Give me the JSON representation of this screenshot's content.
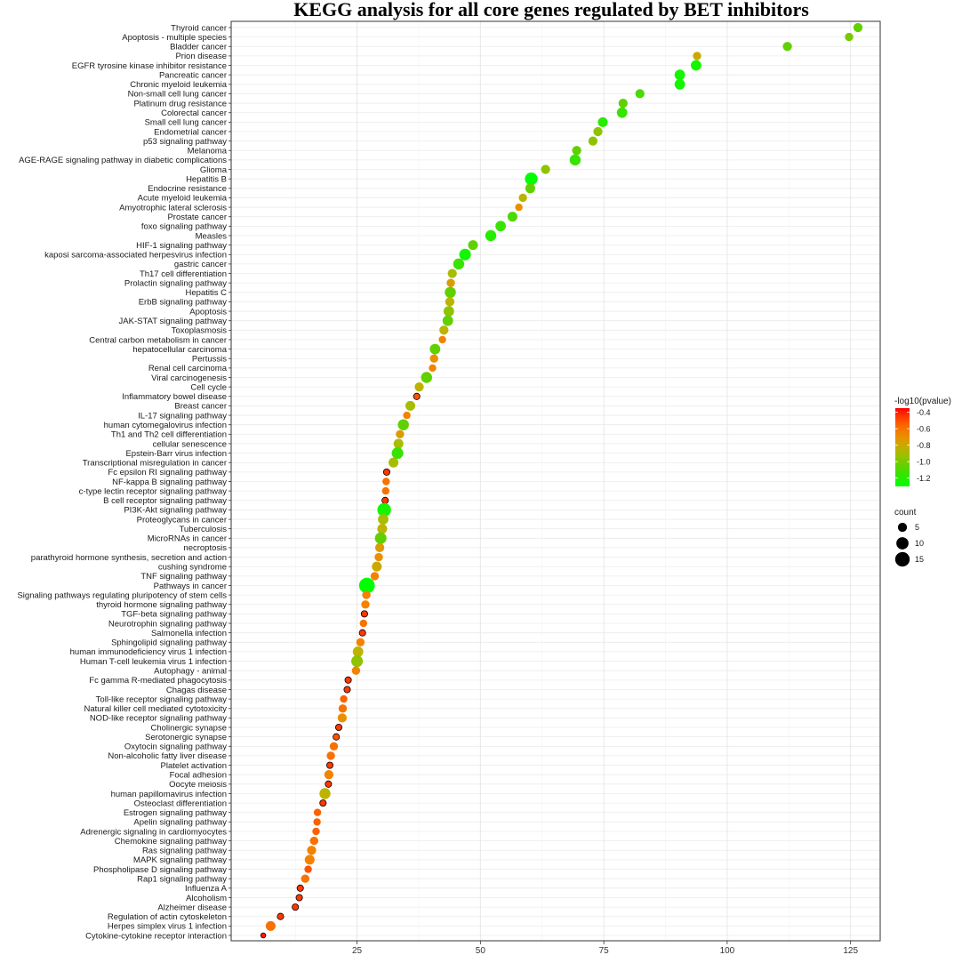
{
  "chart_data": {
    "type": "scatter",
    "title": "KEGG analysis for all core genes regulated by BET inhibitors",
    "xlabel": "",
    "ylabel": "",
    "xlim": [
      -0.5,
      131
    ],
    "xticks": [
      25,
      50,
      75,
      100,
      125
    ],
    "grid": true,
    "color_legend": {
      "title": "-log10(pvalue)",
      "range": [
        -1.3,
        -0.35
      ],
      "ticks": [
        -0.4,
        -0.6,
        -0.8,
        -1.0,
        -1.2
      ],
      "tick_labels": [
        "-0.4",
        "-0.6",
        "-0.8",
        "-1.0",
        "-1.2"
      ],
      "high_color": "#ff0000",
      "low_color": "#00ff00"
    },
    "size_legend": {
      "title": "count",
      "values": [
        5,
        10,
        15
      ],
      "labels": [
        "5",
        "10",
        "15"
      ]
    },
    "points": [
      {
        "term": "Thyroid cancer",
        "x": 126.5,
        "count": 5,
        "pvalue_log": -1.05
      },
      {
        "term": "Apoptosis - multiple species",
        "x": 124.7,
        "count": 4,
        "pvalue_log": -1.0
      },
      {
        "term": "Bladder cancer",
        "x": 112.2,
        "count": 5,
        "pvalue_log": -1.05
      },
      {
        "term": "Prion disease",
        "x": 93.9,
        "count": 4,
        "pvalue_log": -0.8
      },
      {
        "term": "EGFR tyrosine kinase inhibitor resistance",
        "x": 93.7,
        "count": 7,
        "pvalue_log": -1.25
      },
      {
        "term": "Pancreatic cancer",
        "x": 90.4,
        "count": 7,
        "pvalue_log": -1.25
      },
      {
        "term": "Chronic myeloid leukemia",
        "x": 90.4,
        "count": 7,
        "pvalue_log": -1.25
      },
      {
        "term": "Non-small cell lung cancer",
        "x": 82.3,
        "count": 5,
        "pvalue_log": -1.1
      },
      {
        "term": "Platinum drug resistance",
        "x": 78.9,
        "count": 5,
        "pvalue_log": -1.05
      },
      {
        "term": "Colorectal cancer",
        "x": 78.7,
        "count": 7,
        "pvalue_log": -1.15
      },
      {
        "term": "Small cell lung cancer",
        "x": 74.8,
        "count": 6,
        "pvalue_log": -1.2
      },
      {
        "term": "Endometrial cancer",
        "x": 73.8,
        "count": 5,
        "pvalue_log": -0.95
      },
      {
        "term": "p53 signaling pathway",
        "x": 72.8,
        "count": 5,
        "pvalue_log": -0.95
      },
      {
        "term": "Melanoma",
        "x": 69.5,
        "count": 5,
        "pvalue_log": -1.05
      },
      {
        "term": "AGE-RAGE signaling pathway in diabetic complications",
        "x": 69.2,
        "count": 8,
        "pvalue_log": -1.15
      },
      {
        "term": "Glioma",
        "x": 63.2,
        "count": 5,
        "pvalue_log": -0.95
      },
      {
        "term": "Hepatitis B",
        "x": 60.3,
        "count": 11,
        "pvalue_log": -1.3
      },
      {
        "term": "Endocrine resistance",
        "x": 60.1,
        "count": 6,
        "pvalue_log": -1.05
      },
      {
        "term": "Acute myeloid leukemia",
        "x": 58.6,
        "count": 4,
        "pvalue_log": -0.85
      },
      {
        "term": "Amyotrophic lateral sclerosis",
        "x": 57.8,
        "count": 3,
        "pvalue_log": -0.7
      },
      {
        "term": "Prostate cancer",
        "x": 56.5,
        "count": 6,
        "pvalue_log": -1.1
      },
      {
        "term": "foxo signaling pathway",
        "x": 54.1,
        "count": 7,
        "pvalue_log": -1.15
      },
      {
        "term": "Measles",
        "x": 52.1,
        "count": 8,
        "pvalue_log": -1.2
      },
      {
        "term": "HIF-1 signaling pathway",
        "x": 48.5,
        "count": 6,
        "pvalue_log": -1.05
      },
      {
        "term": "kaposi sarcoma-associated herpesvirus infection",
        "x": 46.9,
        "count": 9,
        "pvalue_log": -1.25
      },
      {
        "term": "gastric cancer",
        "x": 45.6,
        "count": 8,
        "pvalue_log": -1.15
      },
      {
        "term": "Th17 cell differentiation",
        "x": 44.3,
        "count": 5,
        "pvalue_log": -0.9
      },
      {
        "term": "Prolactin signaling pathway",
        "x": 44.0,
        "count": 4,
        "pvalue_log": -0.75
      },
      {
        "term": "Hepatitis C",
        "x": 43.9,
        "count": 8,
        "pvalue_log": -1.05
      },
      {
        "term": "ErbB signaling pathway",
        "x": 43.8,
        "count": 5,
        "pvalue_log": -0.85
      },
      {
        "term": "Apoptosis",
        "x": 43.6,
        "count": 7,
        "pvalue_log": -0.95
      },
      {
        "term": "JAK-STAT signaling pathway",
        "x": 43.4,
        "count": 7,
        "pvalue_log": -1.05
      },
      {
        "term": "Toxoplasmosis",
        "x": 42.6,
        "count": 5,
        "pvalue_log": -0.85
      },
      {
        "term": "Central carbon metabolism in cancer",
        "x": 42.3,
        "count": 3,
        "pvalue_log": -0.65
      },
      {
        "term": "hepatocellular carcinoma",
        "x": 40.8,
        "count": 7,
        "pvalue_log": -1.05
      },
      {
        "term": "Pertussis",
        "x": 40.6,
        "count": 4,
        "pvalue_log": -0.7
      },
      {
        "term": "Renal cell carcinoma",
        "x": 40.3,
        "count": 3,
        "pvalue_log": -0.65
      },
      {
        "term": "Viral carcinogenesis",
        "x": 39.1,
        "count": 8,
        "pvalue_log": -1.05
      },
      {
        "term": "Cell cycle",
        "x": 37.6,
        "count": 5,
        "pvalue_log": -0.85
      },
      {
        "term": "Inflammatory bowel disease",
        "x": 37.1,
        "count": 2,
        "pvalue_log": -0.5
      },
      {
        "term": "Breast cancer",
        "x": 35.8,
        "count": 6,
        "pvalue_log": -0.9
      },
      {
        "term": "IL-17 signaling pathway",
        "x": 35.1,
        "count": 3,
        "pvalue_log": -0.65
      },
      {
        "term": "human cytomegalovirus infection",
        "x": 34.4,
        "count": 8,
        "pvalue_log": -1.05
      },
      {
        "term": "Th1 and Th2 cell differentiation",
        "x": 33.7,
        "count": 4,
        "pvalue_log": -0.75
      },
      {
        "term": "cellular senescence",
        "x": 33.4,
        "count": 6,
        "pvalue_log": -0.9
      },
      {
        "term": "Epstein-Barr virus infection",
        "x": 33.2,
        "count": 9,
        "pvalue_log": -1.15
      },
      {
        "term": "Transcriptional misregulation in cancer",
        "x": 32.4,
        "count": 6,
        "pvalue_log": -0.9
      },
      {
        "term": "Fc epsilon RI signaling pathway",
        "x": 31.0,
        "count": 2,
        "pvalue_log": -0.45
      },
      {
        "term": "NF-kappa B signaling pathway",
        "x": 30.9,
        "count": 3,
        "pvalue_log": -0.6
      },
      {
        "term": "c-type lectin receptor signaling pathway",
        "x": 30.8,
        "count": 3,
        "pvalue_log": -0.6
      },
      {
        "term": "B cell receptor signaling pathway",
        "x": 30.7,
        "count": 2,
        "pvalue_log": -0.45
      },
      {
        "term": "PI3K-Akt signaling pathway",
        "x": 30.5,
        "count": 13,
        "pvalue_log": -1.25
      },
      {
        "term": "Proteoglycans in cancer",
        "x": 30.3,
        "count": 7,
        "pvalue_log": -0.9
      },
      {
        "term": "Tuberculosis",
        "x": 30.1,
        "count": 6,
        "pvalue_log": -0.85
      },
      {
        "term": "MicroRNAs in cancer",
        "x": 29.8,
        "count": 9,
        "pvalue_log": -1.05
      },
      {
        "term": "necroptosis",
        "x": 29.6,
        "count": 5,
        "pvalue_log": -0.75
      },
      {
        "term": "parathyroid hormone synthesis, secretion and action",
        "x": 29.4,
        "count": 4,
        "pvalue_log": -0.7
      },
      {
        "term": "cushing syndrome",
        "x": 29.0,
        "count": 6,
        "pvalue_log": -0.8
      },
      {
        "term": "TNF signaling pathway",
        "x": 28.6,
        "count": 4,
        "pvalue_log": -0.65
      },
      {
        "term": "Pathways in cancer",
        "x": 27.0,
        "count": 18,
        "pvalue_log": -1.3
      },
      {
        "term": "Signaling pathways regulating pluripotency of stem cells",
        "x": 26.9,
        "count": 4,
        "pvalue_log": -0.65
      },
      {
        "term": "thyroid hormone signaling pathway",
        "x": 26.7,
        "count": 4,
        "pvalue_log": -0.65
      },
      {
        "term": "TGF-beta signaling pathway",
        "x": 26.5,
        "count": 2,
        "pvalue_log": -0.45
      },
      {
        "term": "Neurotrophin signaling pathway",
        "x": 26.3,
        "count": 3,
        "pvalue_log": -0.6
      },
      {
        "term": "Salmonella infection",
        "x": 26.1,
        "count": 2,
        "pvalue_log": -0.45
      },
      {
        "term": "Sphingolipid signaling pathway",
        "x": 25.7,
        "count": 4,
        "pvalue_log": -0.65
      },
      {
        "term": "human immunodeficiency virus 1 infection",
        "x": 25.2,
        "count": 7,
        "pvalue_log": -0.85
      },
      {
        "term": "Human T-cell leukemia virus 1 infection",
        "x": 25.0,
        "count": 9,
        "pvalue_log": -0.95
      },
      {
        "term": "Autophagy - animal",
        "x": 24.8,
        "count": 4,
        "pvalue_log": -0.65
      },
      {
        "term": "Fc gamma R-mediated phagocytosis",
        "x": 23.2,
        "count": 2,
        "pvalue_log": -0.45
      },
      {
        "term": "Chagas disease",
        "x": 23.0,
        "count": 2,
        "pvalue_log": -0.45
      },
      {
        "term": "Toll-like receptor signaling pathway",
        "x": 22.3,
        "count": 3,
        "pvalue_log": -0.55
      },
      {
        "term": "Natural killer cell mediated cytotoxicity",
        "x": 22.1,
        "count": 4,
        "pvalue_log": -0.6
      },
      {
        "term": "NOD-like receptor signaling pathway",
        "x": 22.0,
        "count": 5,
        "pvalue_log": -0.7
      },
      {
        "term": "Cholinergic synapse",
        "x": 21.3,
        "count": 2,
        "pvalue_log": -0.45
      },
      {
        "term": "Serotonergic synapse",
        "x": 20.8,
        "count": 2,
        "pvalue_log": -0.5
      },
      {
        "term": "Oxytocin signaling pathway",
        "x": 20.3,
        "count": 4,
        "pvalue_log": -0.6
      },
      {
        "term": "Non-alcoholic fatty liver disease",
        "x": 19.7,
        "count": 4,
        "pvalue_log": -0.6
      },
      {
        "term": "Platelet activation",
        "x": 19.5,
        "count": 2,
        "pvalue_log": -0.45
      },
      {
        "term": "Focal adhesion",
        "x": 19.3,
        "count": 5,
        "pvalue_log": -0.65
      },
      {
        "term": "Oocyte meiosis",
        "x": 19.2,
        "count": 2,
        "pvalue_log": -0.45
      },
      {
        "term": "human papillomavirus infection",
        "x": 18.5,
        "count": 8,
        "pvalue_log": -0.85
      },
      {
        "term": "Osteoclast differentiation",
        "x": 18.1,
        "count": 2,
        "pvalue_log": -0.45
      },
      {
        "term": "Estrogen signaling pathway",
        "x": 17.0,
        "count": 3,
        "pvalue_log": -0.55
      },
      {
        "term": "Apelin signaling pathway",
        "x": 16.9,
        "count": 3,
        "pvalue_log": -0.55
      },
      {
        "term": "Adrenergic signaling in cardiomyocytes",
        "x": 16.7,
        "count": 3,
        "pvalue_log": -0.55
      },
      {
        "term": "Chemokine signaling pathway",
        "x": 16.3,
        "count": 4,
        "pvalue_log": -0.6
      },
      {
        "term": "Ras signaling pathway",
        "x": 15.8,
        "count": 5,
        "pvalue_log": -0.65
      },
      {
        "term": "MAPK signaling pathway",
        "x": 15.4,
        "count": 6,
        "pvalue_log": -0.65
      },
      {
        "term": "Phospholipase D signaling pathway",
        "x": 15.1,
        "count": 3,
        "pvalue_log": -0.5
      },
      {
        "term": "Rap1 signaling pathway",
        "x": 14.5,
        "count": 4,
        "pvalue_log": -0.6
      },
      {
        "term": "Influenza A",
        "x": 13.5,
        "count": 2,
        "pvalue_log": -0.45
      },
      {
        "term": "Alcoholism",
        "x": 13.3,
        "count": 2,
        "pvalue_log": -0.45
      },
      {
        "term": "Alzheimer disease",
        "x": 12.5,
        "count": 2,
        "pvalue_log": -0.45
      },
      {
        "term": "Regulation of actin cytoskeleton",
        "x": 9.5,
        "count": 2,
        "pvalue_log": -0.45
      },
      {
        "term": "Herpes simplex virus 1 infection",
        "x": 7.5,
        "count": 6,
        "pvalue_log": -0.6
      },
      {
        "term": "Cytokine-cytokine receptor interaction",
        "x": 6.0,
        "count": 1,
        "pvalue_log": -0.4
      }
    ]
  }
}
